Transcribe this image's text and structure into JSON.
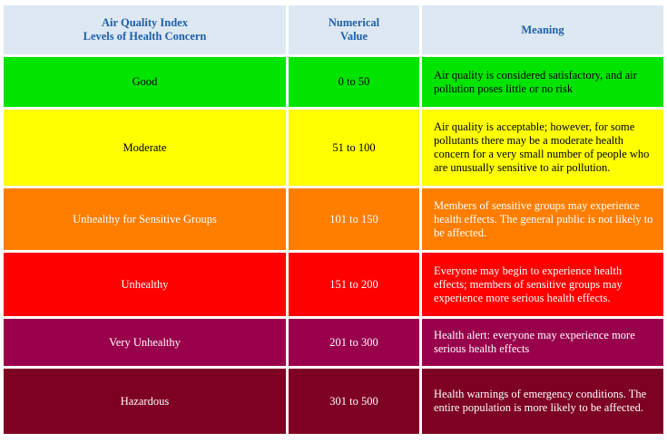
{
  "header": {
    "level_line1": "Air Quality Index",
    "level_line2": "Levels of Health Concern",
    "value_line1": "Numerical",
    "value_line2": "Value",
    "meaning": "Meaning"
  },
  "rows": [
    {
      "level": "Good",
      "value": "0 to 50",
      "meaning": "Air quality is considered satisfactory, and air pollution poses little or no risk",
      "color": "#00e400",
      "text_color": "#000000"
    },
    {
      "level": "Moderate",
      "value": "51 to 100",
      "meaning": "Air quality is acceptable; however, for some pollutants there may be a moderate health concern for a very small number of people who are unusually sensitive to air pollution.",
      "color": "#ffff00",
      "text_color": "#000000"
    },
    {
      "level": "Unhealthy for Sensitive Groups",
      "value": "101 to 150",
      "meaning": "Members of sensitive groups may experience health effects. The general public is not likely to be affected.",
      "color": "#ff7e00",
      "text_color": "#ffffff"
    },
    {
      "level": "Unhealthy",
      "value": "151 to 200",
      "meaning": "Everyone may begin to experience health effects; members of sensitive groups may experience more serious health effects.",
      "color": "#ff0000",
      "text_color": "#ffffff"
    },
    {
      "level": "Very Unhealthy",
      "value": "201 to 300",
      "meaning": "Health alert: everyone may experience more serious health effects",
      "color": "#99004c",
      "text_color": "#ffffff"
    },
    {
      "level": "Hazardous",
      "value": "301 to 500",
      "meaning": "Health warnings of emergency conditions. The entire population is more likely to be affected.",
      "color": "#7e0023",
      "text_color": "#ffffff"
    }
  ]
}
